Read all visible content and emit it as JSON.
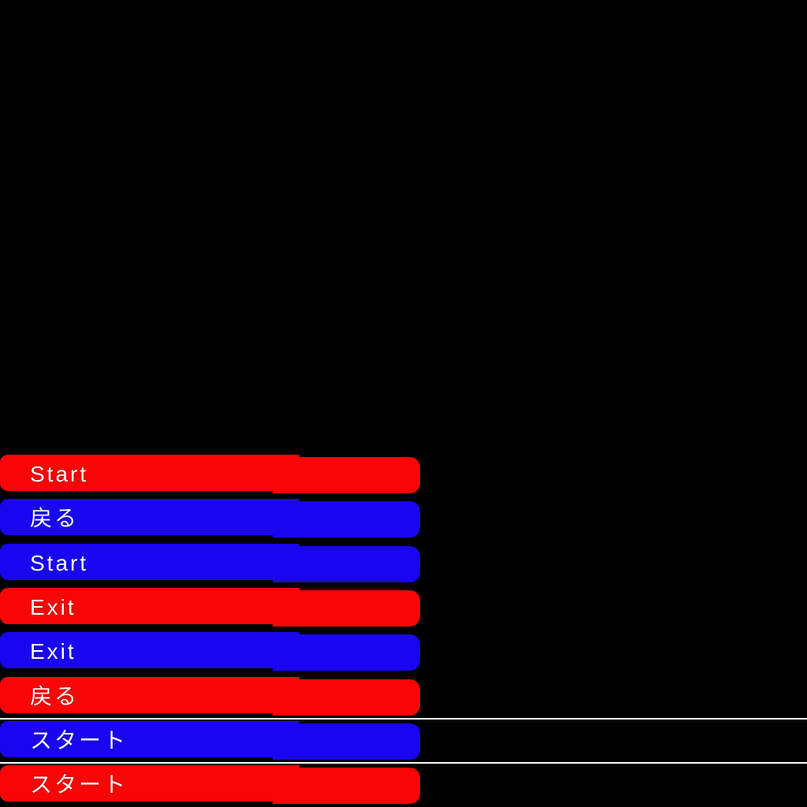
{
  "screen": {
    "background_color": "#000000"
  },
  "colors": {
    "red": "#fa0505",
    "blue": "#1a05f0",
    "text": "#ffffff",
    "divider": "#ffffff"
  },
  "menu": {
    "buttons": [
      {
        "id": "start-english-red",
        "label": "Start",
        "color": "red"
      },
      {
        "id": "back-japanese-blue",
        "label": "戻る",
        "color": "blue"
      },
      {
        "id": "start-english-blue",
        "label": "Start",
        "color": "blue"
      },
      {
        "id": "exit-red",
        "label": "Exit",
        "color": "red"
      },
      {
        "id": "exit-blue",
        "label": "Exit",
        "color": "blue"
      },
      {
        "id": "back-japanese-red",
        "label": "戻る",
        "color": "red"
      },
      {
        "id": "start-katakana-blue",
        "label": "スタート",
        "color": "blue"
      },
      {
        "id": "start-katakana-red",
        "label": "スタート",
        "color": "red"
      }
    ]
  }
}
